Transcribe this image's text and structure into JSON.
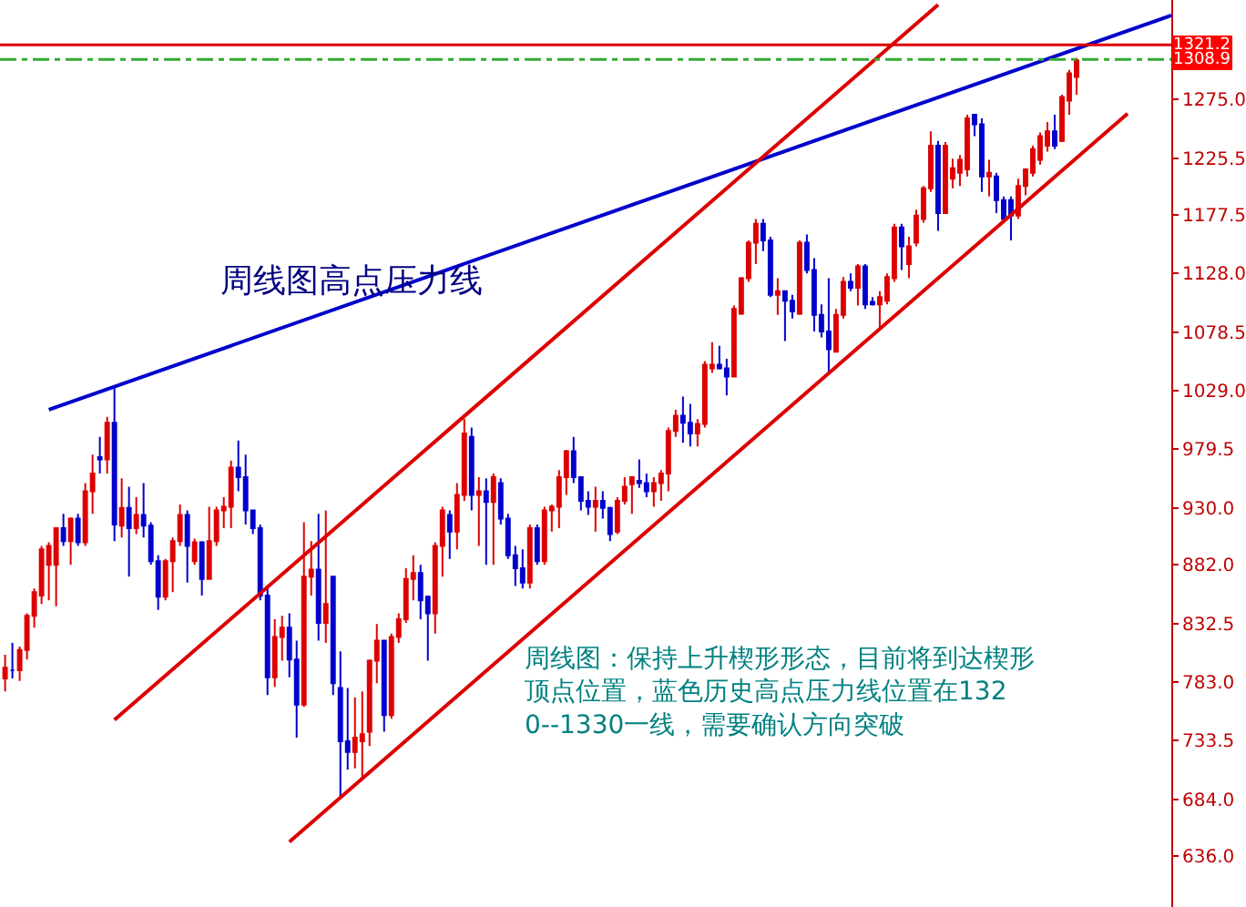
{
  "chart_data": {
    "type": "candlestick",
    "categories": [
      null,
      null,
      null,
      null,
      null,
      null,
      null,
      null,
      null,
      null,
      null,
      null,
      null,
      null,
      null,
      null,
      null,
      null,
      null,
      null,
      null,
      null,
      null,
      null,
      null,
      null,
      null,
      null,
      null,
      null,
      null,
      null,
      null,
      null,
      null,
      null,
      null,
      null,
      null,
      null,
      null,
      null,
      null,
      null,
      null,
      null,
      null,
      null,
      null,
      null,
      null,
      null,
      null,
      null,
      null,
      null,
      null,
      null,
      null,
      null,
      null,
      null,
      null,
      null,
      null,
      null,
      null,
      null,
      null,
      null,
      null,
      null,
      null,
      null,
      null,
      null,
      null,
      null,
      null,
      null,
      null,
      null,
      null,
      null,
      null,
      null,
      null,
      null,
      null,
      null,
      null,
      null,
      null,
      null,
      null,
      null,
      null,
      null,
      null,
      null,
      null,
      null,
      null,
      null,
      null,
      null,
      null,
      null,
      null,
      null,
      null,
      null,
      null,
      null,
      null,
      null,
      null,
      null,
      null,
      null,
      null,
      null,
      null,
      null,
      null,
      null,
      null,
      null,
      null,
      null,
      null,
      null,
      null,
      null,
      null,
      null,
      null,
      null,
      null,
      null,
      null,
      null,
      null,
      null,
      null,
      null,
      null,
      null,
      null,
      null,
      null,
      null,
      null,
      null,
      null,
      null,
      null,
      null,
      null,
      null,
      null
    ],
    "ohlc": [
      [
        786,
        806,
        775,
        795
      ],
      [
        793,
        816,
        786,
        793
      ],
      [
        793,
        813,
        784,
        810
      ],
      [
        810,
        841,
        802,
        839
      ],
      [
        839,
        862,
        829,
        859
      ],
      [
        856,
        898,
        849,
        895
      ],
      [
        882,
        901,
        852,
        898
      ],
      [
        882,
        913,
        847,
        913
      ],
      [
        913,
        925,
        898,
        902
      ],
      [
        902,
        922,
        882,
        921
      ],
      [
        921,
        925,
        898,
        901
      ],
      [
        901,
        951,
        898,
        944
      ],
      [
        944,
        975,
        925,
        959
      ],
      [
        973,
        990,
        959,
        971
      ],
      [
        971,
        1007,
        959,
        1002
      ],
      [
        1002,
        1033,
        902,
        916
      ],
      [
        915,
        955,
        905,
        930
      ],
      [
        930,
        948,
        872,
        913
      ],
      [
        913,
        939,
        908,
        924
      ],
      [
        924,
        951,
        905,
        915
      ],
      [
        915,
        918,
        882,
        885
      ],
      [
        885,
        890,
        844,
        855
      ],
      [
        855,
        887,
        852,
        885
      ],
      [
        885,
        905,
        859,
        902
      ],
      [
        902,
        933,
        898,
        924
      ],
      [
        924,
        928,
        867,
        898
      ],
      [
        885,
        904,
        882,
        901
      ],
      [
        901,
        902,
        856,
        870
      ],
      [
        870,
        931,
        870,
        902
      ],
      [
        902,
        931,
        898,
        928
      ],
      [
        928,
        939,
        913,
        931
      ],
      [
        931,
        970,
        913,
        964
      ],
      [
        964,
        987,
        944,
        956
      ],
      [
        956,
        975,
        916,
        928
      ],
      [
        928,
        928,
        908,
        913
      ],
      [
        913,
        916,
        852,
        856
      ],
      [
        856,
        862,
        772,
        787
      ],
      [
        787,
        836,
        779,
        821
      ],
      [
        821,
        839,
        801,
        829
      ],
      [
        829,
        841,
        787,
        802
      ],
      [
        802,
        818,
        736,
        764
      ],
      [
        764,
        918,
        762,
        872
      ],
      [
        872,
        902,
        856,
        878
      ],
      [
        878,
        925,
        818,
        833
      ],
      [
        833,
        928,
        816,
        849
      ],
      [
        872,
        872,
        772,
        782
      ],
      [
        778,
        809,
        686,
        733
      ],
      [
        733,
        778,
        709,
        724
      ],
      [
        724,
        770,
        710,
        736
      ],
      [
        733,
        775,
        702,
        739
      ],
      [
        741,
        802,
        729,
        801
      ],
      [
        801,
        832,
        782,
        818
      ],
      [
        818,
        818,
        741,
        755
      ],
      [
        755,
        824,
        752,
        821
      ],
      [
        821,
        841,
        816,
        836
      ],
      [
        836,
        879,
        833,
        870
      ],
      [
        870,
        890,
        852,
        875
      ],
      [
        875,
        882,
        836,
        852
      ],
      [
        855,
        856,
        801,
        841
      ],
      [
        841,
        901,
        824,
        898
      ],
      [
        898,
        931,
        872,
        928
      ],
      [
        924,
        928,
        887,
        910
      ],
      [
        910,
        951,
        895,
        941
      ],
      [
        941,
        1005,
        936,
        993
      ],
      [
        990,
        998,
        928,
        941
      ],
      [
        941,
        956,
        898,
        944
      ],
      [
        944,
        955,
        882,
        935
      ],
      [
        935,
        959,
        882,
        956
      ],
      [
        951,
        955,
        916,
        921
      ],
      [
        921,
        925,
        887,
        890
      ],
      [
        890,
        898,
        864,
        879
      ],
      [
        879,
        895,
        862,
        867
      ],
      [
        867,
        916,
        862,
        913
      ],
      [
        913,
        916,
        882,
        885
      ],
      [
        885,
        931,
        882,
        928
      ],
      [
        928,
        933,
        910,
        931
      ],
      [
        931,
        962,
        913,
        956
      ],
      [
        956,
        979,
        941,
        978
      ],
      [
        978,
        990,
        951,
        956
      ],
      [
        956,
        956,
        928,
        936
      ],
      [
        936,
        944,
        924,
        931
      ],
      [
        931,
        948,
        910,
        936
      ],
      [
        936,
        944,
        921,
        930
      ],
      [
        930,
        931,
        902,
        908
      ],
      [
        910,
        939,
        908,
        936
      ],
      [
        936,
        956,
        933,
        948
      ],
      [
        950,
        956,
        925,
        956
      ],
      [
        953,
        971,
        947,
        951
      ],
      [
        951,
        959,
        939,
        944
      ],
      [
        944,
        956,
        931,
        951
      ],
      [
        951,
        962,
        936,
        959
      ],
      [
        959,
        998,
        944,
        995
      ],
      [
        995,
        1013,
        990,
        1008
      ],
      [
        1008,
        1024,
        985,
        1002
      ],
      [
        1002,
        1018,
        982,
        993
      ],
      [
        993,
        1005,
        982,
        1001
      ],
      [
        1001,
        1054,
        998,
        1051
      ],
      [
        1048,
        1070,
        1044,
        1051
      ],
      [
        1051,
        1067,
        1047,
        1048
      ],
      [
        1048,
        1056,
        1025,
        1041
      ],
      [
        1041,
        1101,
        1041,
        1098
      ],
      [
        1094,
        1125,
        1093,
        1124
      ],
      [
        1124,
        1156,
        1121,
        1154
      ],
      [
        1154,
        1174,
        1136,
        1170
      ],
      [
        1170,
        1174,
        1147,
        1156
      ],
      [
        1156,
        1159,
        1108,
        1110
      ],
      [
        1110,
        1124,
        1093,
        1113
      ],
      [
        1113,
        1113,
        1071,
        1105
      ],
      [
        1105,
        1110,
        1090,
        1096
      ],
      [
        1094,
        1156,
        1093,
        1154
      ],
      [
        1154,
        1161,
        1128,
        1131
      ],
      [
        1131,
        1141,
        1079,
        1093
      ],
      [
        1093,
        1102,
        1074,
        1079
      ],
      [
        1079,
        1124,
        1044,
        1064
      ],
      [
        1062,
        1098,
        1062,
        1093
      ],
      [
        1093,
        1125,
        1090,
        1121
      ],
      [
        1121,
        1128,
        1113,
        1116
      ],
      [
        1116,
        1136,
        1101,
        1134
      ],
      [
        1134,
        1136,
        1098,
        1102
      ],
      [
        1104,
        1108,
        1101,
        1102
      ],
      [
        1102,
        1113,
        1082,
        1108
      ],
      [
        1105,
        1128,
        1102,
        1125
      ],
      [
        1124,
        1170,
        1121,
        1167
      ],
      [
        1167,
        1170,
        1131,
        1151
      ],
      [
        1136,
        1159,
        1124,
        1151
      ],
      [
        1154,
        1182,
        1151,
        1177
      ],
      [
        1174,
        1202,
        1171,
        1200
      ],
      [
        1200,
        1248,
        1197,
        1236
      ],
      [
        1236,
        1240,
        1164,
        1179
      ],
      [
        1179,
        1239,
        1179,
        1236
      ],
      [
        1208,
        1225,
        1200,
        1217
      ],
      [
        1213,
        1228,
        1202,
        1224
      ],
      [
        1216,
        1262,
        1210,
        1259
      ],
      [
        1262,
        1262,
        1244,
        1254
      ],
      [
        1254,
        1259,
        1197,
        1210
      ],
      [
        1210,
        1224,
        1193,
        1213
      ],
      [
        1210,
        1213,
        1179,
        1190
      ],
      [
        1190,
        1193,
        1171,
        1174
      ],
      [
        1190,
        1193,
        1156,
        1177
      ],
      [
        1177,
        1208,
        1174,
        1202
      ],
      [
        1202,
        1217,
        1194,
        1216
      ],
      [
        1213,
        1236,
        1210,
        1233
      ],
      [
        1224,
        1247,
        1220,
        1244
      ],
      [
        1236,
        1256,
        1231,
        1248
      ],
      [
        1248,
        1262,
        1233,
        1236
      ],
      [
        1240,
        1279,
        1239,
        1277
      ],
      [
        1274,
        1300,
        1262,
        1297
      ],
      [
        1294,
        1310,
        1279,
        1308
      ],
      null,
      null,
      null,
      null,
      null,
      null,
      null,
      null,
      null,
      null,
      null,
      null,
      null
    ],
    "colors": [
      "#dd0000",
      "#0000cc",
      "#dd0000",
      "#dd0000",
      "#dd0000",
      "#dd0000",
      "#dd0000",
      "#dd0000",
      "#0000cc",
      "#dd0000",
      "#0000cc",
      "#dd0000",
      "#dd0000",
      "#0000cc",
      "#dd0000",
      "#0000cc",
      "#dd0000",
      "#0000cc",
      "#dd0000",
      "#0000cc",
      "#0000cc",
      "#0000cc",
      "#dd0000",
      "#dd0000",
      "#dd0000",
      "#0000cc",
      "#dd0000",
      "#0000cc",
      "#dd0000",
      "#dd0000",
      "#dd0000",
      "#dd0000",
      "#0000cc",
      "#0000cc",
      "#0000cc",
      "#0000cc",
      "#0000cc",
      "#dd0000",
      "#dd0000",
      "#0000cc",
      "#0000cc",
      "#dd0000",
      "#dd0000",
      "#0000cc",
      "#dd0000",
      "#0000cc",
      "#0000cc",
      "#0000cc",
      "#dd0000",
      "#dd0000",
      "#dd0000",
      "#dd0000",
      "#0000cc",
      "#dd0000",
      "#dd0000",
      "#dd0000",
      "#dd0000",
      "#0000cc",
      "#0000cc",
      "#dd0000",
      "#dd0000",
      "#0000cc",
      "#dd0000",
      "#dd0000",
      "#0000cc",
      "#dd0000",
      "#0000cc",
      "#dd0000",
      "#0000cc",
      "#0000cc",
      "#0000cc",
      "#0000cc",
      "#dd0000",
      "#0000cc",
      "#dd0000",
      "#dd0000",
      "#dd0000",
      "#dd0000",
      "#0000cc",
      "#0000cc",
      "#0000cc",
      "#dd0000",
      "#0000cc",
      "#0000cc",
      "#dd0000",
      "#dd0000",
      "#dd0000",
      "#0000cc",
      "#0000cc",
      "#dd0000",
      "#dd0000",
      "#dd0000",
      "#dd0000",
      "#0000cc",
      "#0000cc",
      "#dd0000",
      "#dd0000",
      "#dd0000",
      "#0000cc",
      "#0000cc",
      "#dd0000",
      "#dd0000",
      "#dd0000",
      "#dd0000",
      "#0000cc",
      "#0000cc",
      "#dd0000",
      "#0000cc",
      "#0000cc",
      "#dd0000",
      "#0000cc",
      "#0000cc",
      "#0000cc",
      "#0000cc",
      "#dd0000",
      "#dd0000",
      "#0000cc",
      "#dd0000",
      "#0000cc",
      "#0000cc",
      "#dd0000",
      "#dd0000",
      "#dd0000",
      "#0000cc",
      "#dd0000",
      "#dd0000",
      "#dd0000",
      "#dd0000",
      "#0000cc",
      "#dd0000",
      "#dd0000",
      "#dd0000",
      "#dd0000",
      "#0000cc",
      "#0000cc",
      "#dd0000",
      "#0000cc",
      "#0000cc",
      "#0000cc",
      "#dd0000",
      "#dd0000",
      "#dd0000",
      "#dd0000",
      "#dd0000",
      "#0000cc",
      "#dd0000",
      "#dd0000",
      "#dd0000",
      null,
      null,
      null,
      null,
      null,
      null,
      null,
      null,
      null,
      null,
      null,
      null,
      null
    ],
    "series": [
      {
        "type": "line",
        "color": "#0000cc",
        "values": [
          null,
          null,
          null,
          null,
          null,
          null,
          1013,
          null,
          null,
          null,
          null,
          null,
          null,
          null,
          null,
          null,
          null,
          null,
          null,
          null,
          null,
          null,
          null,
          null,
          null,
          null,
          null,
          null,
          null,
          null,
          null,
          null,
          null,
          null,
          null,
          null,
          null,
          null,
          null,
          null,
          null,
          null,
          null,
          null,
          null,
          null,
          null,
          null,
          null,
          null,
          null,
          null,
          null,
          null,
          null,
          null,
          null,
          null,
          null,
          null,
          null,
          null,
          null,
          null,
          null,
          null,
          null,
          null,
          null,
          null,
          null,
          null,
          null,
          null,
          null,
          null,
          null,
          null,
          null,
          null,
          null,
          null,
          null,
          null,
          null,
          null,
          null,
          null,
          null,
          null,
          null,
          null,
          null,
          null,
          null,
          null,
          null,
          null,
          null,
          null,
          null,
          null,
          null,
          null,
          null,
          null,
          null,
          null,
          null,
          null,
          null,
          null,
          null,
          null,
          null,
          null,
          null,
          null,
          null,
          null,
          null,
          null,
          null,
          null,
          null,
          null,
          null,
          null,
          null,
          null,
          null,
          null,
          null,
          null,
          null,
          null,
          null,
          null,
          null,
          null,
          null,
          null,
          null,
          null,
          null,
          null,
          null,
          null,
          null,
          null,
          null,
          null,
          null,
          null,
          null,
          null,
          null,
          null,
          null,
          null,
          1346
        ]
      },
      {
        "type": "line",
        "color": "#dd0000",
        "values": [
          null,
          null,
          null,
          null,
          null,
          null,
          null,
          null,
          null,
          null,
          null,
          null,
          null,
          null,
          null,
          751,
          null,
          null,
          null,
          null,
          null,
          null,
          null,
          null,
          null,
          null,
          null,
          null,
          null,
          null,
          null,
          null,
          null,
          null,
          null,
          null,
          null,
          null,
          null,
          null,
          null,
          null,
          null,
          null,
          null,
          null,
          null,
          null,
          null,
          null,
          null,
          null,
          null,
          null,
          null,
          null,
          null,
          null,
          null,
          null,
          null,
          null,
          null,
          null,
          null,
          null,
          null,
          null,
          null,
          null,
          null,
          null,
          null,
          null,
          null,
          null,
          null,
          null,
          null,
          null,
          null,
          null,
          null,
          null,
          null,
          null,
          null,
          null,
          null,
          null,
          null,
          null,
          null,
          null,
          null,
          null,
          null,
          null,
          null,
          null,
          null,
          null,
          null,
          null,
          null,
          null,
          null,
          null,
          null,
          null,
          null,
          null,
          null,
          null,
          null,
          null,
          null,
          null,
          null,
          null,
          null,
          null,
          null,
          null,
          null,
          null,
          null,
          null,
          1355,
          null,
          null,
          null,
          null,
          null,
          null,
          null,
          null,
          null,
          null,
          null,
          null,
          null,
          null,
          null,
          null,
          null,
          null,
          null,
          null,
          null,
          null,
          null,
          null,
          null,
          null,
          null,
          null,
          null,
          null,
          null,
          null
        ]
      },
      {
        "type": "line",
        "color": "#dd0000",
        "values": [
          null,
          null,
          null,
          null,
          null,
          null,
          null,
          null,
          null,
          null,
          null,
          null,
          null,
          null,
          null,
          null,
          null,
          null,
          null,
          null,
          null,
          null,
          null,
          null,
          null,
          null,
          null,
          null,
          null,
          null,
          null,
          null,
          null,
          null,
          null,
          null,
          null,
          null,
          null,
          648,
          null,
          null,
          null,
          null,
          null,
          null,
          null,
          null,
          null,
          null,
          null,
          null,
          null,
          null,
          null,
          null,
          null,
          null,
          null,
          null,
          null,
          null,
          null,
          null,
          null,
          null,
          null,
          null,
          null,
          null,
          null,
          null,
          null,
          null,
          null,
          null,
          null,
          null,
          null,
          null,
          null,
          null,
          null,
          null,
          null,
          null,
          null,
          null,
          null,
          null,
          null,
          null,
          null,
          null,
          null,
          null,
          null,
          null,
          null,
          null,
          null,
          null,
          null,
          null,
          null,
          null,
          null,
          null,
          null,
          null,
          null,
          null,
          null,
          null,
          null,
          null,
          null,
          null,
          null,
          null,
          null,
          null,
          null,
          null,
          null,
          null,
          null,
          null,
          null,
          null,
          null,
          null,
          null,
          null,
          null,
          null,
          null,
          null,
          null,
          null,
          null,
          null,
          null,
          null,
          null,
          null,
          null,
          null,
          null,
          null,
          null,
          null,
          null,
          null,
          1263,
          null,
          null,
          null,
          null,
          null,
          null
        ]
      }
    ],
    "ref_lines": [
      {
        "axis": "y",
        "value": 1321.2,
        "label": "1321.2",
        "color": "#dd0000",
        "line_style": "solid"
      },
      {
        "axis": "y",
        "value": 1308.9,
        "label": "1308.9",
        "color": "#33aa33",
        "line_style": "dashdot"
      }
    ],
    "ylim": [
      593,
      1359
    ],
    "yticks": [
      {
        "value": 636,
        "label": "636.0"
      },
      {
        "value": 684,
        "label": "684.0"
      },
      {
        "value": 733.5,
        "label": "733.5"
      },
      {
        "value": 783,
        "label": "783.0"
      },
      {
        "value": 832.5,
        "label": "832.5"
      },
      {
        "value": 882,
        "label": "882.0"
      },
      {
        "value": 930,
        "label": "930.0"
      },
      {
        "value": 979.5,
        "label": "979.5"
      },
      {
        "value": 1029,
        "label": "1029.0"
      },
      {
        "value": 1078.5,
        "label": "1078.5"
      },
      {
        "value": 1128,
        "label": "1128.0"
      },
      {
        "value": 1177.5,
        "label": "1177.5"
      },
      {
        "value": 1225.5,
        "label": "1225.5"
      },
      {
        "value": 1275,
        "label": "1275.0"
      }
    ],
    "tick_labels": "y",
    "annotations": [
      "周线图高点压力线",
      "周线图：保持上升楔形形态，目前将到达楔形顶点位置，蓝色历史高点压力线位置在1320--1330一线，需要确认方向突破"
    ]
  }
}
